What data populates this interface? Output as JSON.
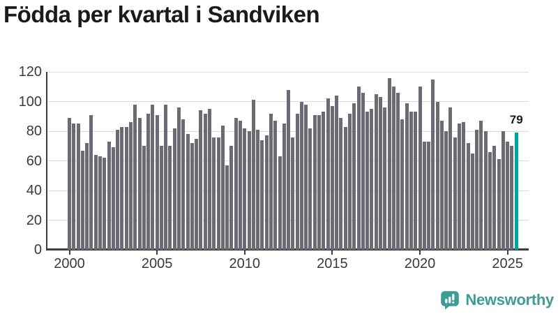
{
  "title": "Födda per kvartal i Sandviken",
  "chart_data": {
    "type": "bar",
    "title": "Födda per kvartal i Sandviken",
    "xlabel": "",
    "ylabel": "",
    "ylim": [
      0,
      120
    ],
    "yticks": [
      0,
      20,
      40,
      60,
      80,
      100,
      120
    ],
    "grid": true,
    "legend": "none",
    "bar_color": "#6b6b74",
    "highlight": {
      "index": 102,
      "color": "#00a3a3"
    },
    "annotation": {
      "text": "79"
    },
    "xticks": [
      {
        "label": "2000",
        "quarter_index": 0
      },
      {
        "label": "2005",
        "quarter_index": 20
      },
      {
        "label": "2010",
        "quarter_index": 40
      },
      {
        "label": "2015",
        "quarter_index": 60
      },
      {
        "label": "2020",
        "quarter_index": 80
      },
      {
        "label": "2025",
        "quarter_index": 100
      }
    ],
    "categories": [
      "2000 Q1",
      "2000 Q2",
      "2000 Q3",
      "2000 Q4",
      "2001 Q1",
      "2001 Q2",
      "2001 Q3",
      "2001 Q4",
      "2002 Q1",
      "2002 Q2",
      "2002 Q3",
      "2002 Q4",
      "2003 Q1",
      "2003 Q2",
      "2003 Q3",
      "2003 Q4",
      "2004 Q1",
      "2004 Q2",
      "2004 Q3",
      "2004 Q4",
      "2005 Q1",
      "2005 Q2",
      "2005 Q3",
      "2005 Q4",
      "2006 Q1",
      "2006 Q2",
      "2006 Q3",
      "2006 Q4",
      "2007 Q1",
      "2007 Q2",
      "2007 Q3",
      "2007 Q4",
      "2008 Q1",
      "2008 Q2",
      "2008 Q3",
      "2008 Q4",
      "2009 Q1",
      "2009 Q2",
      "2009 Q3",
      "2009 Q4",
      "2010 Q1",
      "2010 Q2",
      "2010 Q3",
      "2010 Q4",
      "2011 Q1",
      "2011 Q2",
      "2011 Q3",
      "2011 Q4",
      "2012 Q1",
      "2012 Q2",
      "2012 Q3",
      "2012 Q4",
      "2013 Q1",
      "2013 Q2",
      "2013 Q3",
      "2013 Q4",
      "2014 Q1",
      "2014 Q2",
      "2014 Q3",
      "2014 Q4",
      "2015 Q1",
      "2015 Q2",
      "2015 Q3",
      "2015 Q4",
      "2016 Q1",
      "2016 Q2",
      "2016 Q3",
      "2016 Q4",
      "2017 Q1",
      "2017 Q2",
      "2017 Q3",
      "2017 Q4",
      "2018 Q1",
      "2018 Q2",
      "2018 Q3",
      "2018 Q4",
      "2019 Q1",
      "2019 Q2",
      "2019 Q3",
      "2019 Q4",
      "2020 Q1",
      "2020 Q2",
      "2020 Q3",
      "2020 Q4",
      "2021 Q1",
      "2021 Q2",
      "2021 Q3",
      "2021 Q4",
      "2022 Q1",
      "2022 Q2",
      "2022 Q3",
      "2022 Q4",
      "2023 Q1",
      "2023 Q2",
      "2023 Q3",
      "2023 Q4",
      "2024 Q1",
      "2024 Q2",
      "2024 Q3",
      "2024 Q4",
      "2025 Q1",
      "2025 Q2",
      "2025 Q3"
    ],
    "series": [
      {
        "name": "Födda",
        "values": [
          89,
          85,
          85,
          67,
          72,
          91,
          64,
          63,
          62,
          73,
          69,
          81,
          83,
          83,
          86,
          98,
          89,
          70,
          92,
          98,
          91,
          70,
          98,
          70,
          82,
          96,
          88,
          78,
          72,
          75,
          94,
          92,
          95,
          76,
          76,
          84,
          57,
          70,
          89,
          87,
          82,
          80,
          101,
          81,
          74,
          77,
          92,
          87,
          63,
          85,
          108,
          76,
          92,
          100,
          98,
          82,
          91,
          91,
          93,
          102,
          97,
          104,
          89,
          83,
          92,
          99,
          110,
          106,
          93,
          95,
          105,
          103,
          96,
          116,
          110,
          106,
          88,
          99,
          93,
          93,
          110,
          73,
          73,
          115,
          100,
          87,
          80,
          96,
          76,
          85,
          86,
          72,
          65,
          81,
          87,
          80,
          66,
          70,
          61,
          80,
          73,
          70,
          79
        ]
      }
    ]
  },
  "branding": {
    "name": "Newsworthy",
    "color": "#3f9c95",
    "icon": "newsworthy-chart-bubble-icon"
  }
}
